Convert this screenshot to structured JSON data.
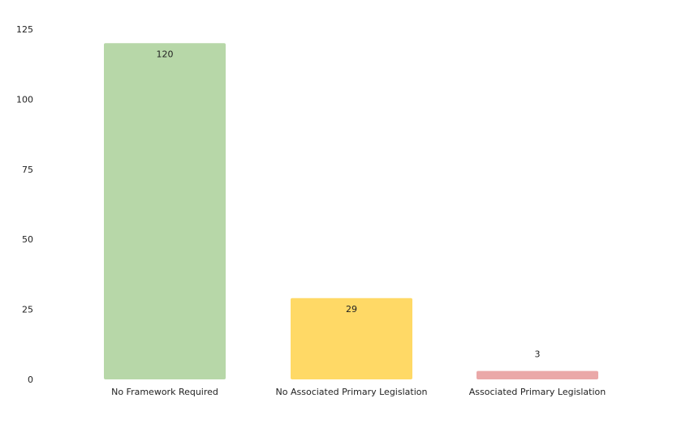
{
  "chart_data": {
    "type": "bar",
    "categories": [
      "No Framework Required",
      "No Associated Primary Legislation",
      "Associated Primary Legislation"
    ],
    "values": [
      120,
      29,
      3
    ],
    "data_labels": [
      "120",
      "29",
      "3"
    ],
    "colors": [
      "#b7d7a8",
      "#ffd966",
      "#eaa8a8"
    ],
    "y_ticks": [
      "0",
      "25",
      "50",
      "75",
      "100",
      "125"
    ],
    "ylim": [
      0,
      125
    ],
    "grid": false,
    "legend": "none"
  }
}
